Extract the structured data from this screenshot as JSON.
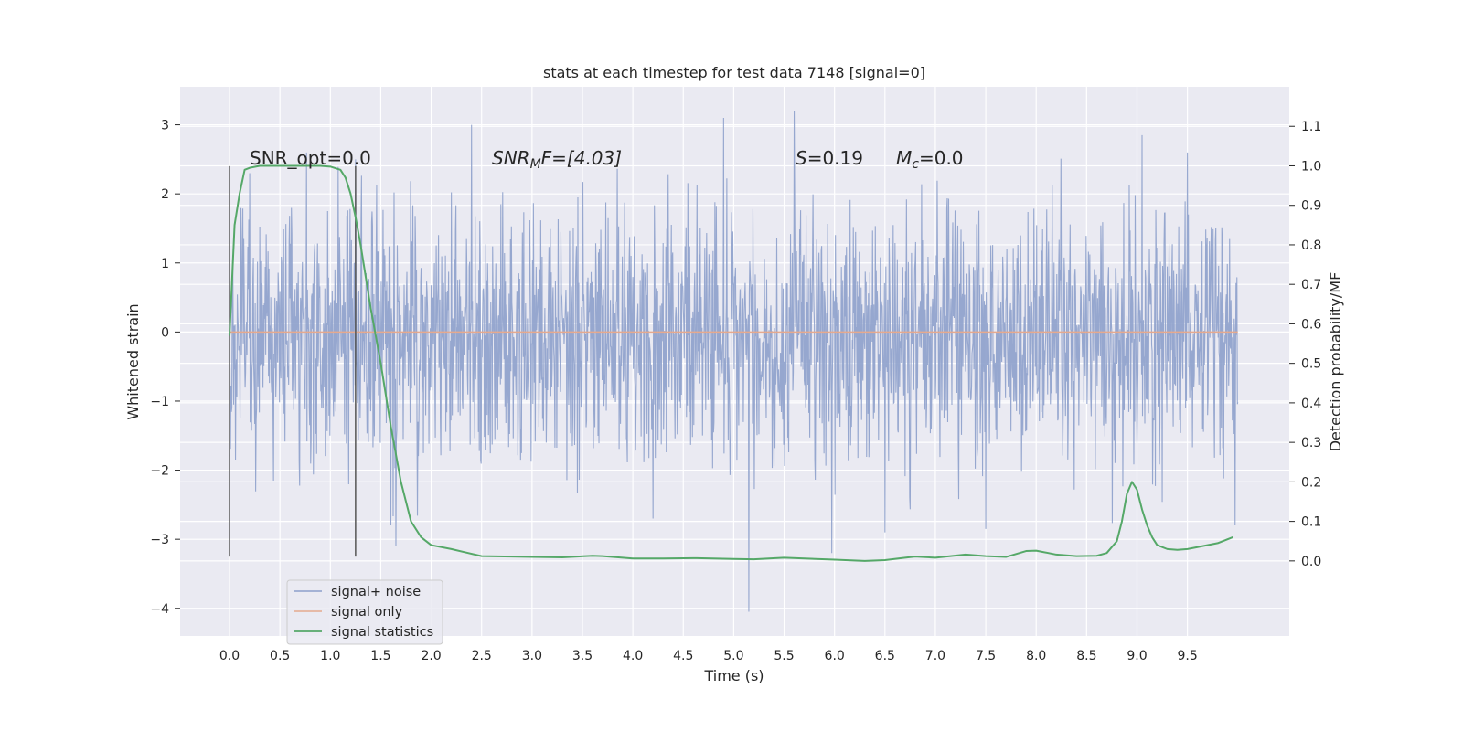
{
  "chart_data": {
    "type": "line",
    "title": "stats at each timestep for test data 7148 [signal=0]",
    "xlabel": "Time (s)",
    "ylabel": "Whitened strain",
    "y2label": "Detection probability/MF",
    "xlim": [
      -0.49,
      10.51
    ],
    "ylim": [
      -4.4,
      3.55
    ],
    "y2lim": [
      -0.19,
      1.2
    ],
    "xticks": [
      0.0,
      0.5,
      1.0,
      1.5,
      2.0,
      2.5,
      3.0,
      3.5,
      4.0,
      4.5,
      5.0,
      5.5,
      6.0,
      6.5,
      7.0,
      7.5,
      8.0,
      8.5,
      9.0,
      9.5
    ],
    "xtick_labels": [
      "0.0",
      "0.5",
      "1.0",
      "1.5",
      "2.0",
      "2.5",
      "3.0",
      "3.5",
      "4.0",
      "4.5",
      "5.0",
      "5.5",
      "6.0",
      "6.5",
      "7.0",
      "7.5",
      "8.0",
      "8.5",
      "9.0",
      "9.5"
    ],
    "yticks": [
      -4,
      -3,
      -2,
      -1,
      0,
      1,
      2,
      3
    ],
    "ytick_labels": [
      "−4",
      "−3",
      "−2",
      "−1",
      "0",
      "1",
      "2",
      "3"
    ],
    "y2ticks": [
      0.0,
      0.1,
      0.2,
      0.3,
      0.4,
      0.5,
      0.6,
      0.7,
      0.8,
      0.9,
      1.0,
      1.1
    ],
    "y2tick_labels": [
      "0.0",
      "0.1",
      "0.2",
      "0.3",
      "0.4",
      "0.5",
      "0.6",
      "0.7",
      "0.8",
      "0.9",
      "1.0",
      "1.1"
    ],
    "grid": true,
    "legend_position": "lower-left",
    "series": [
      {
        "name": "signal+ noise",
        "axis": "left",
        "color": "#8da0cb",
        "style": "dense noise trace",
        "x_range": [
          0.0,
          10.0
        ],
        "band": [
          -1.5,
          1.3
        ],
        "extremes": [
          {
            "x": 0.0,
            "y": -1.8
          },
          {
            "x": 0.2,
            "y": 2.3
          },
          {
            "x": 1.25,
            "y": 2.5
          },
          {
            "x": 1.6,
            "y": -2.8
          },
          {
            "x": 1.65,
            "y": -3.1
          },
          {
            "x": 2.4,
            "y": 3.0
          },
          {
            "x": 4.2,
            "y": -2.7
          },
          {
            "x": 4.9,
            "y": 3.1
          },
          {
            "x": 5.15,
            "y": -4.05
          },
          {
            "x": 5.6,
            "y": 3.2
          },
          {
            "x": 5.97,
            "y": -3.2
          },
          {
            "x": 6.5,
            "y": -2.9
          },
          {
            "x": 7.5,
            "y": -2.85
          },
          {
            "x": 9.05,
            "y": 2.85
          },
          {
            "x": 9.5,
            "y": 2.6
          }
        ]
      },
      {
        "name": "signal only",
        "axis": "left",
        "color": "#e5a98e",
        "x": [
          0.0,
          10.0
        ],
        "y": [
          0.0,
          0.0
        ]
      },
      {
        "name": "signal statistics",
        "axis": "right",
        "color": "#55a868",
        "x": [
          0.0,
          0.05,
          0.1,
          0.15,
          0.2,
          0.3,
          0.5,
          0.7,
          0.9,
          1.0,
          1.1,
          1.15,
          1.2,
          1.25,
          1.3,
          1.35,
          1.4,
          1.5,
          1.6,
          1.7,
          1.8,
          1.9,
          2.0,
          2.2,
          2.5,
          2.8,
          3.0,
          3.3,
          3.6,
          3.7,
          4.0,
          4.3,
          4.6,
          5.0,
          5.2,
          5.5,
          6.0,
          6.3,
          6.5,
          6.7,
          6.8,
          7.0,
          7.3,
          7.5,
          7.7,
          7.9,
          8.0,
          8.2,
          8.4,
          8.6,
          8.7,
          8.8,
          8.85,
          8.9,
          8.95,
          9.0,
          9.05,
          9.1,
          9.15,
          9.2,
          9.3,
          9.4,
          9.5,
          9.6,
          9.8,
          9.95
        ],
        "y": [
          0.57,
          0.85,
          0.93,
          0.99,
          0.995,
          1.0,
          1.0,
          1.0,
          1.0,
          0.998,
          0.99,
          0.97,
          0.93,
          0.87,
          0.8,
          0.72,
          0.64,
          0.5,
          0.34,
          0.2,
          0.1,
          0.06,
          0.04,
          0.03,
          0.012,
          0.011,
          0.01,
          0.009,
          0.013,
          0.012,
          0.006,
          0.006,
          0.007,
          0.005,
          0.004,
          0.008,
          0.003,
          0.0,
          0.002,
          0.008,
          0.011,
          0.008,
          0.016,
          0.012,
          0.01,
          0.025,
          0.026,
          0.016,
          0.012,
          0.013,
          0.02,
          0.05,
          0.1,
          0.17,
          0.2,
          0.18,
          0.13,
          0.09,
          0.06,
          0.04,
          0.03,
          0.028,
          0.03,
          0.035,
          0.045,
          0.06
        ]
      }
    ],
    "vlines": [
      {
        "x": 0.0,
        "ymin": -3.25,
        "ymax": 2.4,
        "color": "#555555"
      },
      {
        "x": 1.25,
        "ymin": -3.25,
        "ymax": 2.4,
        "color": "#555555"
      }
    ],
    "annotations": {
      "snr_opt": "SNR_opt=0.0",
      "snr_mf_main": "SNR",
      "snr_mf_sub": "M",
      "snr_mf_rest": "F=[4.03]",
      "s_main": "S",
      "s_rest": "=0.19",
      "mc_main": "M",
      "mc_sub": "c",
      "mc_rest": "=0.0"
    }
  },
  "colors": {
    "plot_background": "#eaeaf2",
    "grid": "#ffffff",
    "text": "#262626"
  }
}
